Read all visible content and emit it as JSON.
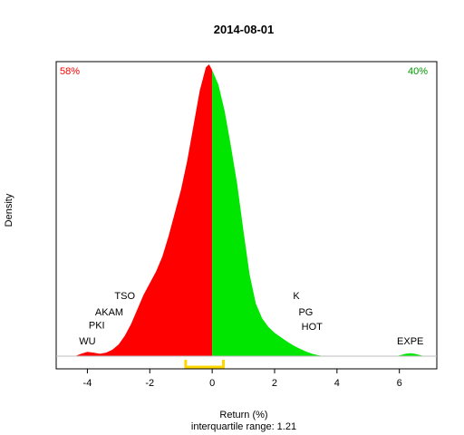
{
  "chart_data": {
    "type": "area",
    "title": "2014-08-01",
    "xlabel": "Return (%)",
    "ylabel": "Density",
    "subtitle": "interquartile range: 1.21",
    "xlim": [
      -5,
      7.2
    ],
    "ylim": [
      0,
      1
    ],
    "x_ticks": [
      -4,
      -2,
      0,
      2,
      4,
      6
    ],
    "x_tick_labels": [
      "-4",
      "-2",
      "0",
      "2",
      "4",
      "6"
    ],
    "split_at": 0,
    "negative_share": "58%",
    "positive_share": "40%",
    "colors": {
      "negative": "#ff0000",
      "positive": "#00e600",
      "iqr": "#ffd700",
      "baseline": "#bebebe"
    },
    "density": {
      "x": [
        -4.4,
        -4.2,
        -4.0,
        -3.8,
        -3.6,
        -3.4,
        -3.2,
        -3.0,
        -2.8,
        -2.6,
        -2.4,
        -2.2,
        -2.0,
        -1.8,
        -1.6,
        -1.4,
        -1.2,
        -1.0,
        -0.8,
        -0.6,
        -0.4,
        -0.2,
        -0.1,
        0.0,
        0.1,
        0.2,
        0.4,
        0.6,
        0.8,
        1.0,
        1.2,
        1.4,
        1.6,
        1.8,
        2.0,
        2.2,
        2.4,
        2.6,
        2.8,
        3.0,
        3.2,
        3.4,
        3.6,
        3.8,
        4.0,
        4.2
      ],
      "y": [
        0.0,
        0.008,
        0.015,
        0.012,
        0.008,
        0.012,
        0.022,
        0.04,
        0.07,
        0.11,
        0.16,
        0.21,
        0.25,
        0.29,
        0.34,
        0.41,
        0.49,
        0.57,
        0.67,
        0.79,
        0.91,
        0.99,
        1.0,
        0.98,
        0.955,
        0.93,
        0.84,
        0.72,
        0.59,
        0.43,
        0.28,
        0.18,
        0.13,
        0.1,
        0.08,
        0.065,
        0.05,
        0.037,
        0.026,
        0.016,
        0.008,
        0.003,
        0.0,
        0.0,
        0.0,
        0.0
      ]
    },
    "outlier_bump": {
      "x": [
        5.9,
        6.05,
        6.2,
        6.35,
        6.5,
        6.65,
        6.8
      ],
      "y": [
        0.0,
        0.004,
        0.008,
        0.01,
        0.008,
        0.004,
        0.0
      ]
    },
    "iqr": [
      -0.85,
      0.36
    ],
    "annotations": [
      {
        "text": "TSO",
        "x": -2.8,
        "y": 0.195
      },
      {
        "text": "AKAM",
        "x": -3.3,
        "y": 0.14
      },
      {
        "text": "PKI",
        "x": -3.7,
        "y": 0.095
      },
      {
        "text": "WU",
        "x": -4.0,
        "y": 0.04
      },
      {
        "text": "K",
        "x": 2.7,
        "y": 0.195
      },
      {
        "text": "PG",
        "x": 3.0,
        "y": 0.14
      },
      {
        "text": "HOT",
        "x": 3.2,
        "y": 0.09
      },
      {
        "text": "EXPE",
        "x": 6.35,
        "y": 0.04
      }
    ]
  }
}
